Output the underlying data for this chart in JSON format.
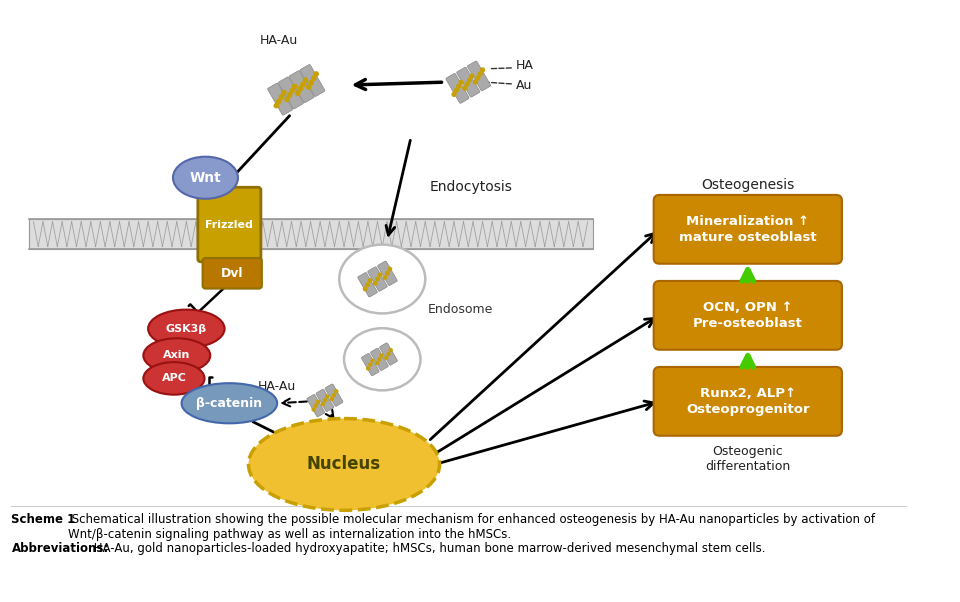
{
  "bg_color": "#ffffff",
  "title_bold": "Scheme 1",
  "caption_normal": " Schematical illustration showing the possible molecular mechanism for enhanced osteogenesis by HA-Au nanoparticles by activation of Wnt/β-catenin signaling pathway as well as internalization into the hMSCs.",
  "abbrev_bold": "Abbreviations:",
  "abbrev_normal": " HA-Au, gold nanoparticles-loaded hydroxyapatite; hMSCs, human bone marrow-derived mesenchymal stem cells.",
  "orange_box_color": "#CC8800",
  "orange_box_edge": "#AA6600",
  "green_arrow_color": "#44CC00",
  "wnt_color": "#8899CC",
  "frizzled_color": "#C8A000",
  "dvl_color": "#B87800",
  "red_color": "#CC3333",
  "bcatenin_color": "#7799BB",
  "nucleus_fill": "#F0C030",
  "nucleus_edge": "#C8A000",
  "mem_fill": "#DDDDDD",
  "mem_line": "#999999",
  "nanorod_gold": "#C8A000",
  "nanorod_gray": "#AAAAAA"
}
